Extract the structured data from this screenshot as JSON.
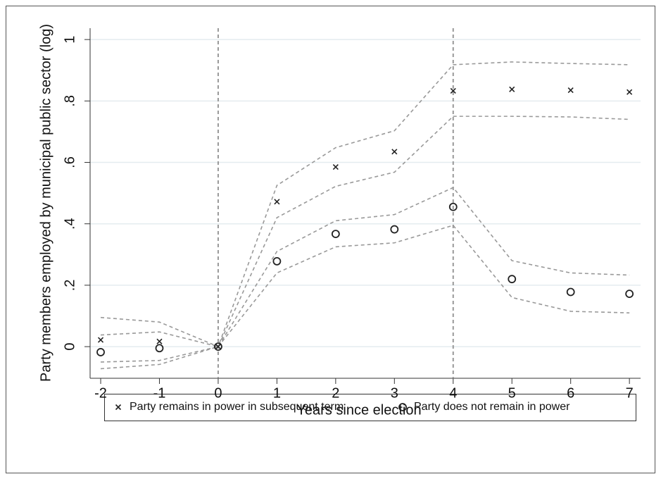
{
  "chart_data": {
    "type": "scatter",
    "x_label": "Years since election",
    "y_label": "Party members employed by municipal public sector (log)",
    "x": [
      -2,
      -1,
      0,
      1,
      2,
      3,
      4,
      5,
      6,
      7
    ],
    "xlim": [
      -2.18,
      7.19
    ],
    "xticks": [
      -2,
      -1,
      0,
      1,
      2,
      3,
      4,
      5,
      6,
      7
    ],
    "ylim": [
      -0.103,
      1.037
    ],
    "yticks": [
      0,
      {
        "value": 0.2,
        "label": ".2"
      },
      {
        "value": 0.4,
        "label": ".4"
      },
      {
        "value": 0.6,
        "label": ".6"
      },
      {
        "value": 0.8,
        "label": ".8"
      },
      1
    ],
    "xlines": [
      0,
      4
    ],
    "grid": true,
    "series": [
      {
        "name": "Party remains in power in subsequent term",
        "marker": "x",
        "color": "#222222",
        "values": [
          0.022,
          0.017,
          0,
          0.472,
          0.585,
          0.635,
          0.833,
          0.838,
          0.835,
          0.829
        ],
        "ci_upper": [
          0.095,
          0.08,
          0,
          0.525,
          0.648,
          0.703,
          0.918,
          0.927,
          0.922,
          0.918
        ],
        "ci_lower": [
          -0.05,
          -0.045,
          0,
          0.42,
          0.522,
          0.568,
          0.75,
          0.75,
          0.748,
          0.74
        ]
      },
      {
        "name": "Party does not remain in power",
        "marker": "o",
        "color": "#222222",
        "values": [
          -0.018,
          -0.005,
          0,
          0.278,
          0.367,
          0.382,
          0.455,
          0.22,
          0.178,
          0.172
        ],
        "ci_upper": [
          0.038,
          0.048,
          0,
          0.31,
          0.41,
          0.43,
          0.518,
          0.28,
          0.24,
          0.233
        ],
        "ci_lower": [
          -0.072,
          -0.058,
          0,
          0.24,
          0.325,
          0.338,
          0.395,
          0.16,
          0.115,
          0.11
        ]
      }
    ]
  }
}
